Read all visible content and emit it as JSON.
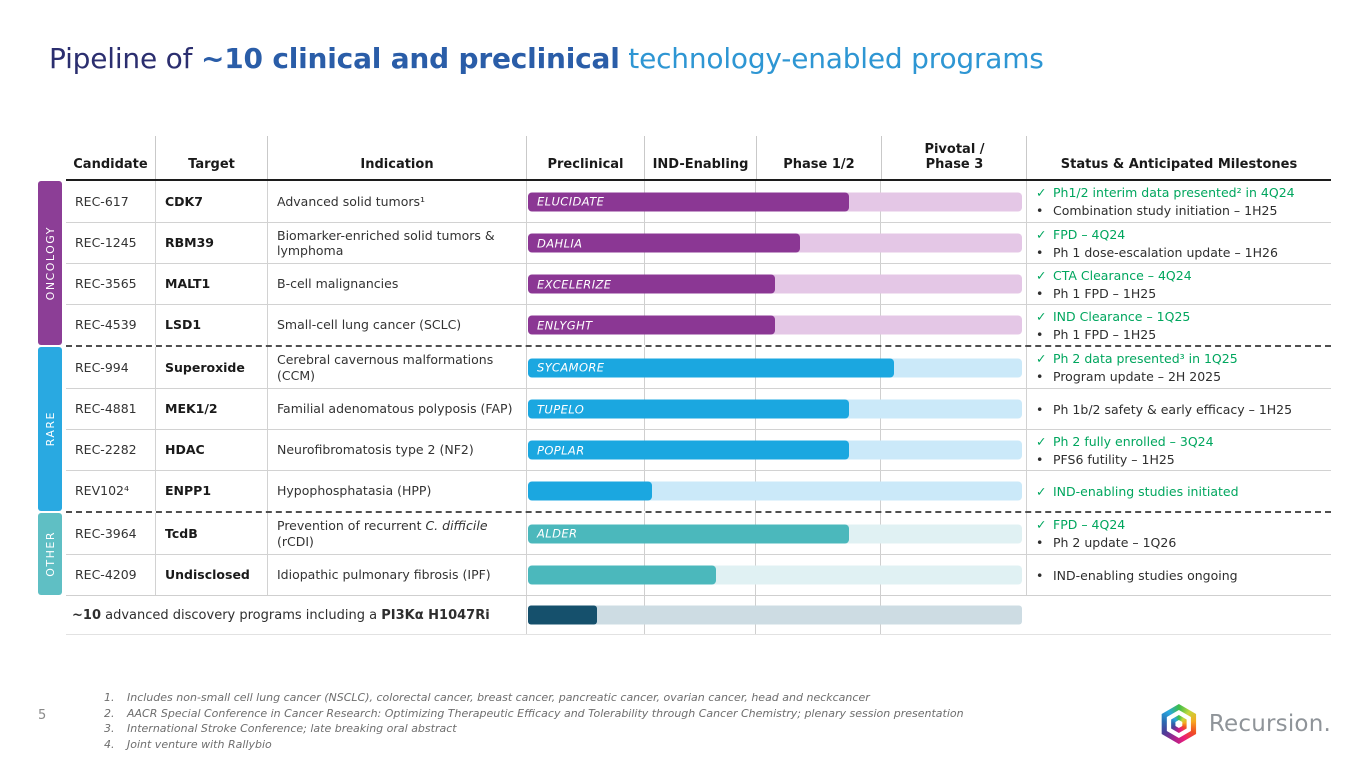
{
  "title": {
    "part1": "Pipeline of ",
    "part2": "~10 clinical and preclinical",
    "part3": " technology-enabled programs"
  },
  "colors": {
    "onc-dark": "#8B3794",
    "onc-light": "#E4C7E6",
    "onc-rail": "#8C3E96",
    "rare-dark": "#1BA7E0",
    "rare-light": "#CBE9F9",
    "rare-rail": "#29A9E1",
    "other-dark": "#4BB8BC",
    "other-light": "#E0F1F3",
    "other-rail": "#5FBFC4",
    "disc-dark": "#15506C",
    "disc-light": "#CDDCE3",
    "green": "#00A65E",
    "title-navy": "#2B2E6F",
    "title-mid": "#2A5DA8",
    "title-light": "#2E96D3"
  },
  "icons": {
    "check": "✓",
    "bullet": "•"
  },
  "table": {
    "headers": {
      "candidate": "Candidate",
      "target": "Target",
      "indication": "Indication",
      "stages": [
        {
          "line1": "Preclinical",
          "line2": ""
        },
        {
          "line1": "IND-Enabling",
          "line2": ""
        },
        {
          "line1": "Phase 1/2",
          "line2": ""
        },
        {
          "line1": "Pivotal /",
          "line2": "Phase 3"
        }
      ],
      "status": "Status & Anticipated Milestones"
    },
    "groups": [
      {
        "name": "ONCOLOGY",
        "rows": [
          {
            "candidate": "REC-617",
            "target": "CDK7",
            "indication": "Advanced solid tumors¹",
            "bar": {
              "label": "ELUCIDATE",
              "fill_pct": 65
            },
            "status": [
              {
                "type": "check",
                "text": "Ph1/2 interim data presented² in 4Q24"
              },
              {
                "type": "bullet",
                "text": "Combination study initiation – 1H25"
              }
            ]
          },
          {
            "candidate": "REC-1245",
            "target": "RBM39",
            "indication": "Biomarker-enriched solid tumors & lymphoma",
            "bar": {
              "label": "DAHLIA",
              "fill_pct": 55
            },
            "status": [
              {
                "type": "check",
                "text": "FPD – 4Q24"
              },
              {
                "type": "bullet",
                "text": "Ph 1 dose-escalation update – 1H26"
              }
            ]
          },
          {
            "candidate": "REC-3565",
            "target": "MALT1",
            "indication": "B-cell malignancies",
            "bar": {
              "label": "EXCELERIZE",
              "fill_pct": 50
            },
            "status": [
              {
                "type": "check",
                "text": "CTA Clearance – 4Q24"
              },
              {
                "type": "bullet",
                "text": "Ph 1 FPD – 1H25"
              }
            ]
          },
          {
            "candidate": "REC-4539",
            "target": "LSD1",
            "indication": "Small-cell lung cancer (SCLC)",
            "bar": {
              "label": "ENLYGHT",
              "fill_pct": 50
            },
            "status": [
              {
                "type": "check",
                "text": "IND Clearance – 1Q25"
              },
              {
                "type": "bullet",
                "text": "Ph 1 FPD – 1H25"
              }
            ]
          }
        ]
      },
      {
        "name": "RARE",
        "rows": [
          {
            "candidate": "REC-994",
            "target": "Superoxide",
            "indication": "Cerebral cavernous malformations (CCM)",
            "bar": {
              "label": "SYCAMORE",
              "fill_pct": 74
            },
            "status": [
              {
                "type": "check",
                "text": "Ph 2 data presented³ in 1Q25"
              },
              {
                "type": "bullet",
                "text": "Program update – 2H 2025"
              }
            ]
          },
          {
            "candidate": "REC-4881",
            "target": "MEK1/2",
            "indication": "Familial adenomatous polyposis (FAP)",
            "bar": {
              "label": "TUPELO",
              "fill_pct": 65
            },
            "status": [
              {
                "type": "bullet",
                "text": "Ph 1b/2 safety & early efficacy – 1H25"
              }
            ]
          },
          {
            "candidate": "REC-2282",
            "target": "HDAC",
            "indication": "Neurofibromatosis type 2 (NF2)",
            "bar": {
              "label": "POPLAR",
              "fill_pct": 65
            },
            "status": [
              {
                "type": "check",
                "text": "Ph 2 fully enrolled – 3Q24"
              },
              {
                "type": "bullet",
                "text": "PFS6 futility – 1H25"
              }
            ]
          },
          {
            "candidate": "REV102⁴",
            "target": "ENPP1",
            "indication": "Hypophosphatasia (HPP)",
            "bar": {
              "label": "",
              "fill_pct": 25
            },
            "status": [
              {
                "type": "check",
                "text": "IND-enabling studies initiated"
              }
            ]
          }
        ]
      },
      {
        "name": "OTHER",
        "rows": [
          {
            "candidate": "REC-3964",
            "target": "TcdB",
            "indication_pre": "Prevention of recurrent ",
            "indication_italic": "C. difficile",
            "indication_post": " (rCDI)",
            "bar": {
              "label": "ALDER",
              "fill_pct": 65
            },
            "status": [
              {
                "type": "check",
                "text": "FPD – 4Q24"
              },
              {
                "type": "bullet",
                "text": "Ph 2 update – 1Q26"
              }
            ]
          },
          {
            "candidate": "REC-4209",
            "target": "Undisclosed",
            "indication": "Idiopathic pulmonary fibrosis (IPF)",
            "bar": {
              "label": "",
              "fill_pct": 38
            },
            "status": [
              {
                "type": "bullet",
                "text": "IND-enabling studies ongoing"
              }
            ]
          }
        ]
      }
    ],
    "discovery": {
      "bold1": "~10",
      "mid": " advanced discovery programs including a ",
      "bold2": "PI3Kα H1047Ri",
      "bar": {
        "fill_pct": 14
      }
    }
  },
  "footnotes": [
    {
      "num": "1.",
      "text": "Includes non-small cell lung cancer (NSCLC), colorectal cancer, breast cancer, pancreatic cancer, ovarian cancer, head and neckcancer"
    },
    {
      "num": "2.",
      "text": "AACR Special Conference in Cancer Research: Optimizing Therapeutic Efficacy and Tolerability through Cancer Chemistry; plenary session presentation"
    },
    {
      "num": "3.",
      "text": "International Stroke Conference; late breaking oral abstract"
    },
    {
      "num": "4.",
      "text": "Joint venture with Rallybio"
    }
  ],
  "page": {
    "number": "5"
  },
  "logo": {
    "text": "Recursion."
  }
}
